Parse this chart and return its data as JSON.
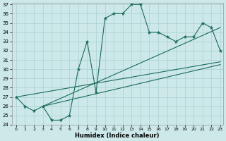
{
  "x": [
    0,
    1,
    2,
    3,
    4,
    5,
    6,
    7,
    8,
    9,
    10,
    11,
    12,
    13,
    14,
    15,
    16,
    17,
    18,
    19,
    20,
    21,
    22,
    23
  ],
  "y": [
    27,
    26,
    25.5,
    26,
    24.5,
    24.5,
    25,
    30,
    33,
    27.5,
    35.5,
    36,
    36,
    37,
    37,
    34,
    34,
    33.5,
    33,
    33.5,
    33.5,
    35,
    34.5,
    32
  ],
  "upper_line_x": [
    3,
    23
  ],
  "upper_line_y": [
    26,
    34.5
  ],
  "lower_line_x": [
    3,
    23
  ],
  "lower_line_y": [
    26,
    30.5
  ],
  "mid_line_x": [
    0,
    23
  ],
  "mid_line_y": [
    27,
    30.8
  ],
  "ylim": [
    24,
    37
  ],
  "xlim": [
    -0.5,
    23.3
  ],
  "line_color": "#1a6b5a",
  "bg_color": "#cce8e8",
  "grid_color": "#aad0d0",
  "xlabel": "Humidex (Indice chaleur)",
  "yticks": [
    24,
    25,
    26,
    27,
    28,
    29,
    30,
    31,
    32,
    33,
    34,
    35,
    36,
    37
  ],
  "xticks": [
    0,
    1,
    2,
    3,
    4,
    5,
    6,
    7,
    8,
    9,
    10,
    11,
    12,
    13,
    14,
    15,
    16,
    17,
    18,
    19,
    20,
    21,
    22,
    23
  ]
}
